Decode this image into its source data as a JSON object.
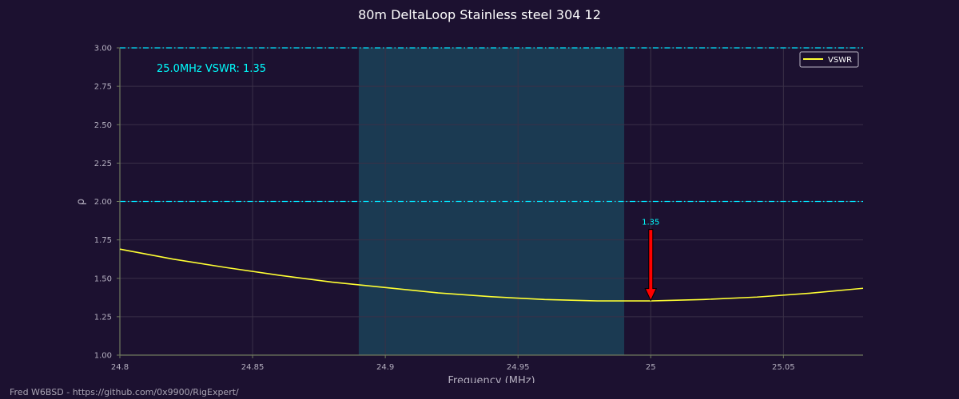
{
  "chart_data": {
    "type": "line",
    "title": "80m DeltaLoop Stainless steel 304 12",
    "xlabel": "Frequency (MHz)",
    "ylabel": "ρ",
    "xlim": [
      24.8,
      25.08
    ],
    "ylim": [
      1.0,
      3.0
    ],
    "x_ticks": [
      {
        "value": 24.8,
        "label": "24.8"
      },
      {
        "value": 24.85,
        "label": "24.85"
      },
      {
        "value": 24.9,
        "label": "24.9"
      },
      {
        "value": 24.95,
        "label": "24.95"
      },
      {
        "value": 25.0,
        "label": "25"
      },
      {
        "value": 25.05,
        "label": "25.05"
      }
    ],
    "y_ticks": [
      {
        "value": 1.0,
        "label": "1.00"
      },
      {
        "value": 1.25,
        "label": "1.25"
      },
      {
        "value": 1.5,
        "label": "1.50"
      },
      {
        "value": 1.75,
        "label": "1.75"
      },
      {
        "value": 2.0,
        "label": "2.00"
      },
      {
        "value": 2.25,
        "label": "2.25"
      },
      {
        "value": 2.5,
        "label": "2.50"
      },
      {
        "value": 2.75,
        "label": "2.75"
      },
      {
        "value": 3.0,
        "label": "3.00"
      }
    ],
    "grid": true,
    "legend": {
      "position": "top-right",
      "entries": [
        "VSWR"
      ]
    },
    "series": [
      {
        "name": "VSWR",
        "color": "#ffff33",
        "x": [
          24.8,
          24.82,
          24.84,
          24.86,
          24.88,
          24.9,
          24.92,
          24.94,
          24.96,
          24.98,
          25.0,
          25.02,
          25.04,
          25.06,
          25.08
        ],
        "y": [
          1.69,
          1.625,
          1.57,
          1.52,
          1.475,
          1.44,
          1.405,
          1.38,
          1.362,
          1.353,
          1.353,
          1.362,
          1.378,
          1.403,
          1.435
        ]
      }
    ],
    "shaded_band": {
      "x_start": 24.89,
      "x_end": 24.99,
      "color": "#1b3a52"
    },
    "reference_lines": [
      {
        "y": 2.0,
        "color": "#00e5ff",
        "style": "dash-dot"
      },
      {
        "y": 3.0,
        "color": "#00e5ff",
        "style": "dash-dot"
      }
    ],
    "annotation_text": "25.0MHz VSWR: 1.35",
    "marker": {
      "x": 25.0,
      "y": 1.35,
      "label": "1.35",
      "color": "#ff0000"
    },
    "colors": {
      "background": "#1c1130",
      "grid": "#3a3148",
      "axis": "#6f7a5e",
      "tick_text": "#b4afbf",
      "label_text": "#b4afbf",
      "title_text": "#ffffff",
      "annotation": "#00ffff"
    }
  },
  "footer": {
    "credit": "Fred W6BSD - https://github.com/0x9900/RigExpert/"
  }
}
